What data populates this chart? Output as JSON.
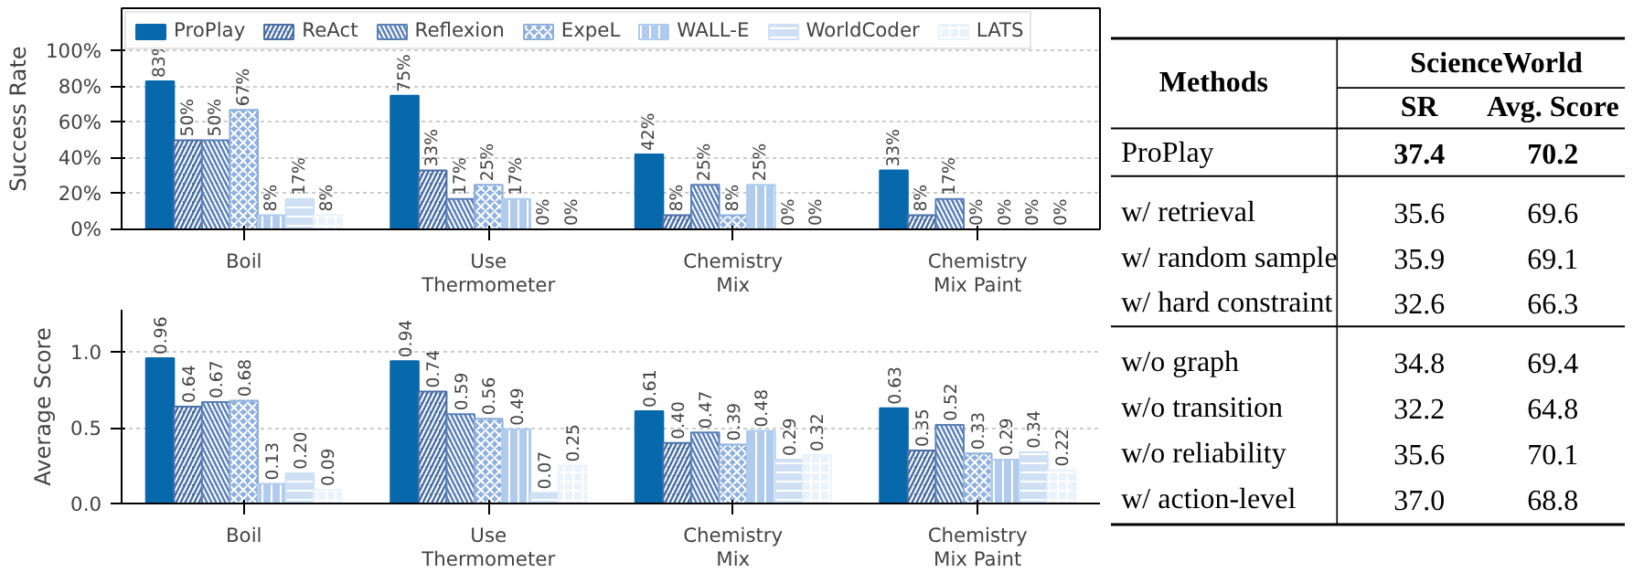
{
  "chart_data": [
    {
      "type": "bar",
      "ylabel": "Success Rate",
      "categories": [
        "Boil",
        "Use Thermometer",
        "Chemistry Mix",
        "Chemistry Mix Paint"
      ],
      "ylim": [
        0,
        124
      ],
      "yticks": [
        {
          "value": 0,
          "label": "0%"
        },
        {
          "value": 20,
          "label": "20%"
        },
        {
          "value": 40,
          "label": "40%"
        },
        {
          "value": 60,
          "label": "60%"
        },
        {
          "value": 80,
          "label": "80%"
        },
        {
          "value": 100,
          "label": "100%"
        }
      ],
      "grid": "y",
      "legend": "top left",
      "series": [
        {
          "name": "ProPlay",
          "color": "#0868ac",
          "values": [
            83,
            75,
            42,
            33
          ],
          "value_labels": [
            "83%",
            "75%",
            "42%",
            "33%"
          ]
        },
        {
          "name": "ReAct",
          "color": "#4a6fa5",
          "values": [
            50,
            33,
            8,
            8
          ],
          "value_labels": [
            "50%",
            "33%",
            "8%",
            "8%"
          ]
        },
        {
          "name": "Reflexion",
          "color": "#5b80b8",
          "values": [
            50,
            17,
            25,
            17
          ],
          "value_labels": [
            "50%",
            "17%",
            "25%",
            "17%"
          ]
        },
        {
          "name": "ExpeL",
          "color": "#8fb0dc",
          "values": [
            67,
            25,
            8,
            0
          ],
          "value_labels": [
            "67%",
            "25%",
            "8%",
            "0%"
          ]
        },
        {
          "name": "WALL-E",
          "color": "#b0cbed",
          "values": [
            8,
            17,
            25,
            0
          ],
          "value_labels": [
            "8%",
            "17%",
            "25%",
            "0%"
          ]
        },
        {
          "name": "WorldCoder",
          "color": "#cfe0f5",
          "values": [
            17,
            0,
            0,
            0
          ],
          "value_labels": [
            "17%",
            "0%",
            "0%",
            "0%"
          ]
        },
        {
          "name": "LATS",
          "color": "#eaf2fb",
          "values": [
            8,
            0,
            0,
            0
          ],
          "value_labels": [
            "8%",
            "0%",
            "0%",
            "0%"
          ]
        }
      ]
    },
    {
      "type": "bar",
      "ylabel": "Average Score",
      "categories": [
        "Boil",
        "Use Thermometer",
        "Chemistry Mix",
        "Chemistry Mix Paint"
      ],
      "ylim": [
        0,
        1.28
      ],
      "yticks": [
        {
          "value": 0,
          "label": "0.0"
        },
        {
          "value": 0.5,
          "label": "0.5"
        },
        {
          "value": 1,
          "label": "1.0"
        }
      ],
      "grid": "y",
      "series": [
        {
          "color": "#0868ac",
          "values": [
            0.96,
            0.94,
            0.61,
            0.63
          ],
          "value_labels": [
            "0.96",
            "0.94",
            "0.61",
            "0.63"
          ]
        },
        {
          "color": "#4a6fa5",
          "values": [
            0.64,
            0.74,
            0.4,
            0.35
          ],
          "value_labels": [
            "0.64",
            "0.74",
            "0.40",
            "0.35"
          ]
        },
        {
          "color": "#5b80b8",
          "values": [
            0.67,
            0.59,
            0.47,
            0.52
          ],
          "value_labels": [
            "0.67",
            "0.59",
            "0.47",
            "0.52"
          ]
        },
        {
          "color": "#8fb0dc",
          "values": [
            0.68,
            0.56,
            0.39,
            0.33
          ],
          "value_labels": [
            "0.68",
            "0.56",
            "0.39",
            "0.33"
          ]
        },
        {
          "color": "#b0cbed",
          "values": [
            0.13,
            0.49,
            0.48,
            0.29
          ],
          "value_labels": [
            "0.13",
            "0.49",
            "0.48",
            "0.29"
          ]
        },
        {
          "color": "#cfe0f5",
          "values": [
            0.2,
            0.07,
            0.29,
            0.34
          ],
          "value_labels": [
            "0.20",
            "0.07",
            "0.29",
            "0.34"
          ]
        },
        {
          "color": "#eaf2fb",
          "values": [
            0.09,
            0.25,
            0.32,
            0.22
          ],
          "value_labels": [
            "0.09",
            "0.25",
            "0.32",
            "0.22"
          ]
        }
      ]
    },
    {
      "type": "other",
      "title": "ScienceWorld",
      "annotations": [
        "Methods",
        "SR",
        "Avg. Score",
        "ProPlay",
        "37.4",
        "70.2",
        "w/ retrieval",
        "35.6",
        "69.6",
        "w/ random sample",
        "35.9",
        "69.1",
        "w/ hard constraint",
        "32.6",
        "66.3",
        "w/o graph",
        "34.8",
        "69.4",
        "w/o transition",
        "32.2",
        "64.8",
        "w/o reliability",
        "35.6",
        "70.1",
        "w/ action-level",
        "37.0",
        "68.8"
      ]
    }
  ]
}
